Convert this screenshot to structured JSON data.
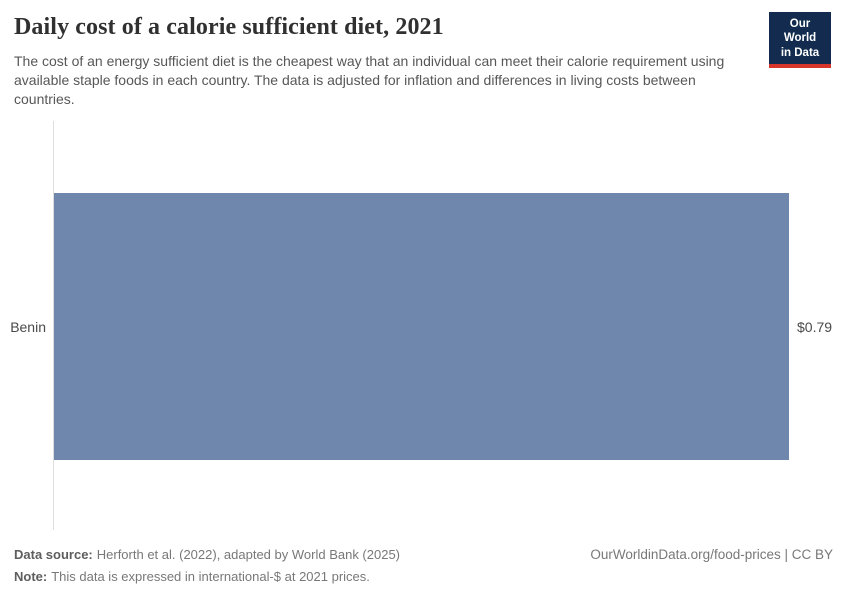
{
  "header": {
    "title": "Daily cost of a calorie sufficient diet, 2021",
    "subtitle": "The cost of an energy sufficient diet is the cheapest way that an individual can meet their calorie requirement using available staple foods in each country. The data is adjusted for inflation and differences in living costs between countries.",
    "logo_line1": "Our World",
    "logo_line2": "in Data"
  },
  "chart_data": {
    "type": "bar",
    "orientation": "horizontal",
    "title": "Daily cost of a calorie sufficient diet, 2021",
    "categories": [
      "Benin"
    ],
    "values": [
      0.79
    ],
    "value_labels": [
      "$0.79"
    ],
    "xlabel": "",
    "ylabel": "",
    "xlim": [
      0,
      0.79
    ],
    "grid": false,
    "legend": false,
    "bar_color": "#6f86ad"
  },
  "footer": {
    "data_source_label": "Data source:",
    "data_source_value": "Herforth et al. (2022), adapted by World Bank (2025)",
    "note_label": "Note:",
    "note_value": "This data is expressed in international-$ at 2021 prices.",
    "right_link": "OurWorldinData.org/food-prices | CC BY"
  },
  "colors": {
    "bar": "#6f86ad",
    "axis_line": "#dedede",
    "logo_background": "#122b4e",
    "logo_underline": "#d8352a"
  }
}
